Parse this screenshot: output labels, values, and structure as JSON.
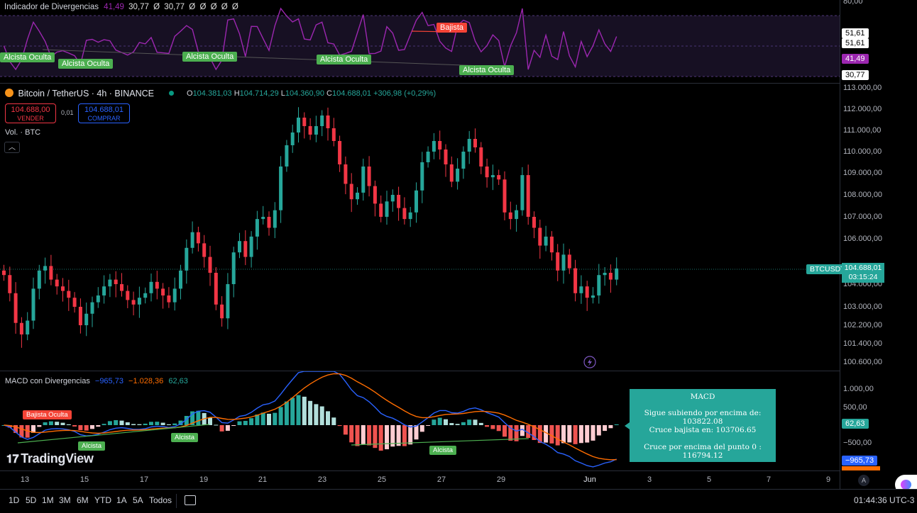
{
  "indicator_pane": {
    "title": "Indicador de Divergencias",
    "values": [
      "41,49",
      "30,77",
      "Ø",
      "30,77",
      "Ø",
      "Ø",
      "Ø",
      "Ø",
      "Ø"
    ],
    "labels": {
      "hidden_bull": "Alcista Oculta",
      "bearish": "Bajista"
    },
    "axis_ticks": [
      "80,00",
      "51,61",
      "51,61",
      "30,77"
    ],
    "current_value": "41,49",
    "line_color": "#9c27b0",
    "zone_color": "#7e57c2"
  },
  "header": {
    "symbol_title": "Bitcoin / TetherUS · 4h · BINANCE",
    "ohlc": {
      "o_label": "O",
      "o_value": "104.381,03",
      "h_label": "H",
      "h_value": "104.714,29",
      "l_label": "L",
      "l_value": "104.360,90",
      "c_label": "C",
      "c_value": "104.688,01",
      "change": "+306,98 (+0,29%)"
    },
    "sell": {
      "price": "104.688,00",
      "label": "VENDER"
    },
    "spread": "0,01",
    "buy": {
      "price": "104.688,01",
      "label": "COMPRAR"
    },
    "volume_label": "Vol. · BTC"
  },
  "price_axis": {
    "ticks": [
      "113.000,00",
      "112.000,00",
      "111.000,00",
      "110.000,00",
      "109.000,00",
      "108.000,00",
      "107.000,00",
      "106.000,00",
      "104.000,00",
      "103.000,00",
      "102.200,00",
      "101.400,00",
      "100.600,00"
    ],
    "symbol_tag": "BTCUSDT",
    "last_price": "104.688,01",
    "countdown": "03:15:24"
  },
  "macd_pane": {
    "title": "MACD con Divergencias",
    "macd_value": "−965,73",
    "signal_value": "−1.028,36",
    "hist_value": "62,63",
    "labels": {
      "hidden_bear": "Bajista Oculta",
      "bull": "Alcista"
    },
    "axis_ticks": [
      "1.000,00",
      "500,00",
      "−500,00"
    ],
    "hist_tag": "62,63",
    "macd_tag": "−965,73",
    "signal_tag": "−1.028,36",
    "info_box": {
      "title": "MACD",
      "line1": "Sigue subiendo por encima de: 103822.08",
      "line2": "Cruce bajista en: 103706.65",
      "line3": "Cruce por encima del punto 0 : 116794.12"
    }
  },
  "time_axis": [
    "13",
    "15",
    "17",
    "19",
    "21",
    "23",
    "25",
    "27",
    "29",
    "Jun",
    "3",
    "5",
    "7",
    "9"
  ],
  "brand": "TradingView",
  "bottom_bar": {
    "ranges": [
      "1D",
      "5D",
      "1M",
      "3M",
      "6M",
      "YTD",
      "1A",
      "5A",
      "Todos"
    ],
    "clock": "01:44:36 UTC-3"
  },
  "colors": {
    "up": "#26a69a",
    "down": "#f23645",
    "macd_line": "#2962ff",
    "signal_line": "#ff6d00",
    "accent_blue": "#2962ff"
  },
  "chart_data": {
    "type": "candlestick",
    "title": "Bitcoin / TetherUS · 4h · BINANCE",
    "candles_close": [
      104400,
      103600,
      102300,
      101800,
      102400,
      103800,
      104600,
      104800,
      104200,
      103900,
      103700,
      103400,
      103000,
      102200,
      102700,
      103200,
      103500,
      103900,
      104200,
      104000,
      103700,
      103300,
      103100,
      103400,
      103600,
      104100,
      103800,
      103500,
      103200,
      103800,
      104600,
      105600,
      106300,
      105800,
      105200,
      104500,
      103100,
      102500,
      104000,
      105400,
      105900,
      105200,
      106100,
      106900,
      107000,
      106500,
      107300,
      109300,
      110300,
      110900,
      111600,
      111200,
      110800,
      111200,
      111700,
      111100,
      110500,
      109400,
      108500,
      107800,
      108100,
      109300,
      108400,
      107600,
      107000,
      107700,
      108000,
      107400,
      106900,
      107200,
      108200,
      109500,
      110000,
      110500,
      110100,
      109400,
      108600,
      109200,
      110000,
      110600,
      110200,
      109300,
      108800,
      108900,
      108700,
      107200,
      106900,
      107300,
      108900,
      107000,
      106500,
      105700,
      106100,
      105400,
      104600,
      105300,
      104700,
      103600,
      103900,
      103400,
      103500,
      104400,
      104500,
      104200,
      104690
    ],
    "ylim": [
      100600,
      113000
    ],
    "last": 104688.01
  }
}
